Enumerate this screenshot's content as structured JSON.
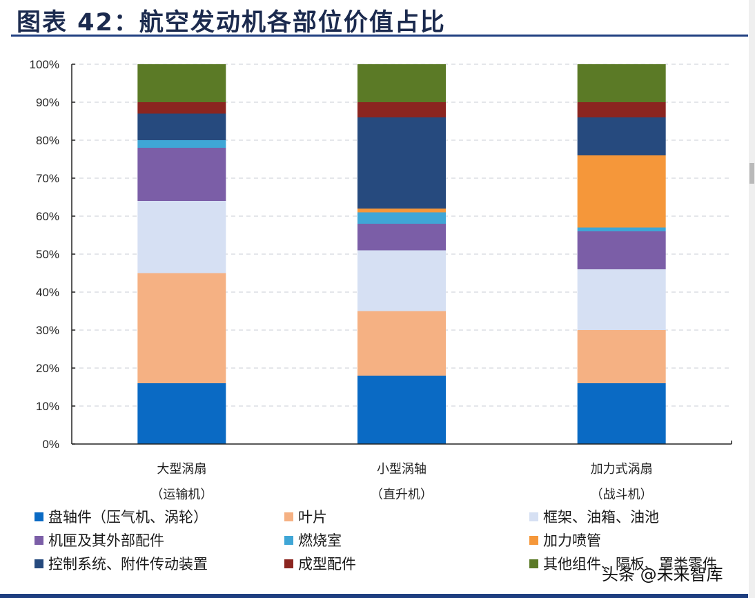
{
  "header": {
    "title": "图表 42：航空发动机各部位价值占比"
  },
  "watermark": "头条 @未来智库",
  "chart_data": {
    "type": "bar",
    "stacked": true,
    "title": "航空发动机各部位价值占比",
    "xlabel": "",
    "ylabel": "",
    "ylim": [
      0,
      100
    ],
    "yticks": [
      "0%",
      "10%",
      "20%",
      "30%",
      "40%",
      "50%",
      "60%",
      "70%",
      "80%",
      "90%",
      "100%"
    ],
    "grid": true,
    "legend_position": "bottom",
    "categories": [
      {
        "line1": "大型涡扇",
        "line2": "（运输机）"
      },
      {
        "line1": "小型涡轴",
        "line2": "（直升机）"
      },
      {
        "line1": "加力式涡扇",
        "line2": "（战斗机）"
      }
    ],
    "series": [
      {
        "name": "盘轴件（压气机、涡轮）",
        "color": "#0a6ac4",
        "values": [
          16,
          18,
          16
        ]
      },
      {
        "name": "叶片",
        "color": "#f5b183",
        "values": [
          29,
          17,
          14
        ]
      },
      {
        "name": "框架、油箱、油池",
        "color": "#d6e0f3",
        "values": [
          19,
          16,
          16
        ]
      },
      {
        "name": "机匣及其外部配件",
        "color": "#7b5ea7",
        "values": [
          14,
          7,
          10
        ]
      },
      {
        "name": "燃烧室",
        "color": "#3fa6d6",
        "values": [
          2,
          3,
          1
        ]
      },
      {
        "name": "加力喷管",
        "color": "#f5973a",
        "values": [
          0,
          1,
          19
        ]
      },
      {
        "name": "控制系统、附件传动装置",
        "color": "#264a7e",
        "values": [
          7,
          24,
          10
        ]
      },
      {
        "name": "成型配件",
        "color": "#8b2520",
        "values": [
          3,
          4,
          4
        ]
      },
      {
        "name": "其他组件、隔板、罩类零件",
        "color": "#5b7a26",
        "values": [
          10,
          10,
          10
        ]
      }
    ]
  }
}
